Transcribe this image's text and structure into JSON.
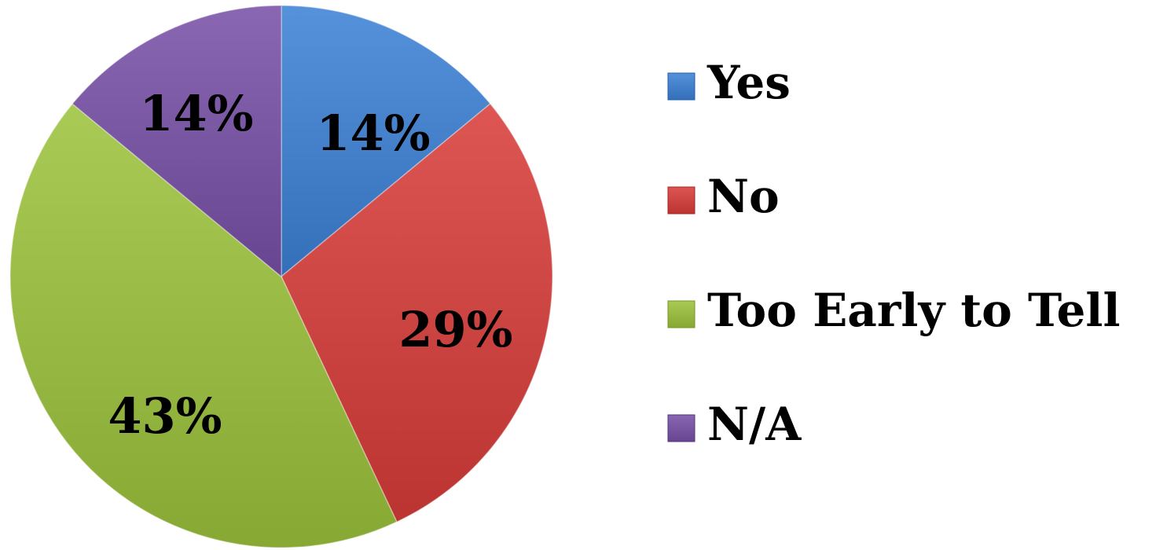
{
  "chart_data": {
    "type": "pie",
    "title": "",
    "legend_position": "right",
    "series": [
      {
        "name": "Yes",
        "value": 14,
        "label": "14%",
        "color": "#4a86cf"
      },
      {
        "name": "No",
        "value": 29,
        "label": "29%",
        "color": "#d14a47"
      },
      {
        "name": "Too Early to Tell",
        "value": 43,
        "label": "43%",
        "color": "#9dbf4a"
      },
      {
        "name": "N/A",
        "value": 14,
        "label": "14%",
        "color": "#7d5ba6"
      }
    ]
  }
}
